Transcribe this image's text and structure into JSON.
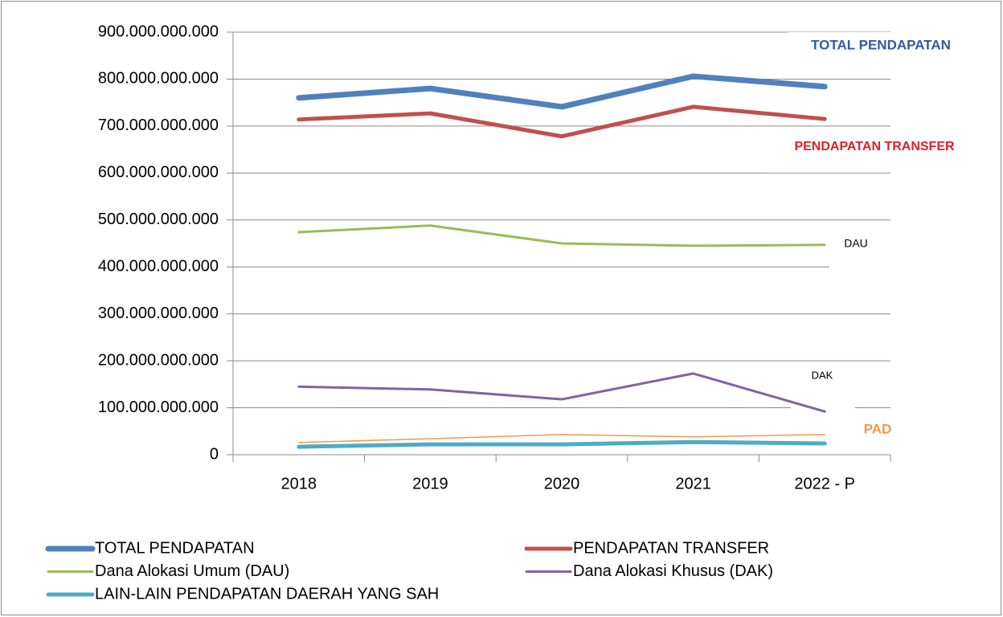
{
  "chart_data": {
    "type": "line",
    "categories": [
      "2018",
      "2019",
      "2020",
      "2021",
      "2022 - P"
    ],
    "series": [
      {
        "name": "TOTAL PENDAPATAN",
        "color": "#4f81bd",
        "line_width": 7,
        "values": [
          760000000000,
          780000000000,
          741000000000,
          806000000000,
          784000000000
        ]
      },
      {
        "name": "PENDAPATAN TRANSFER",
        "color": "#c0504d",
        "line_width": 5,
        "values": [
          714000000000,
          727000000000,
          678000000000,
          741000000000,
          715000000000
        ]
      },
      {
        "name": "Dana Alokasi Umum (DAU)",
        "color": "#9bbb59",
        "line_width": 3,
        "values": [
          474000000000,
          488000000000,
          450000000000,
          445000000000,
          447000000000
        ]
      },
      {
        "name": "Dana Alokasi Khusus (DAK)",
        "color": "#8064a2",
        "line_width": 3,
        "values": [
          145000000000,
          139000000000,
          118000000000,
          173000000000,
          92000000000
        ]
      },
      {
        "name": "LAIN-LAIN PENDAPATAN DAERAH YANG SAH",
        "color": "#4bacc6",
        "line_width": 5,
        "values": [
          17000000000,
          22000000000,
          22000000000,
          27000000000,
          24000000000
        ]
      },
      {
        "color": "#f79646",
        "line_width": 1.5,
        "values": [
          26000000000,
          34000000000,
          43000000000,
          38000000000,
          43000000000
        ]
      }
    ],
    "annotations": [
      {
        "text": "TOTAL PENDAPATAN",
        "color": "#2e5c9a"
      },
      {
        "text": "PENDAPATAN TRANSFER",
        "color": "#e31e24"
      },
      {
        "text": "DAU",
        "color": "#000000"
      },
      {
        "text": "DAK",
        "color": "#000000"
      },
      {
        "text": "PAD",
        "color": "#f79646"
      }
    ],
    "ylim": [
      0,
      900000000000
    ],
    "yticks": [
      0,
      {
        "value": 100000000000,
        "label": "100.000.000.000"
      },
      {
        "value": 200000000000,
        "label": "200.000.000.000"
      },
      {
        "value": 300000000000,
        "label": "300.000.000.000"
      },
      {
        "value": 400000000000,
        "label": "400.000.000.000"
      },
      {
        "value": 500000000000,
        "label": "500.000.000.000"
      },
      {
        "value": 600000000000,
        "label": "600.000.000.000"
      },
      {
        "value": 700000000000,
        "label": "700.000.000.000"
      },
      {
        "value": 800000000000,
        "label": "800.000.000.000"
      },
      {
        "value": 900000000000,
        "label": "900.000.000.000"
      }
    ],
    "grid": true,
    "legend": "bottom"
  }
}
